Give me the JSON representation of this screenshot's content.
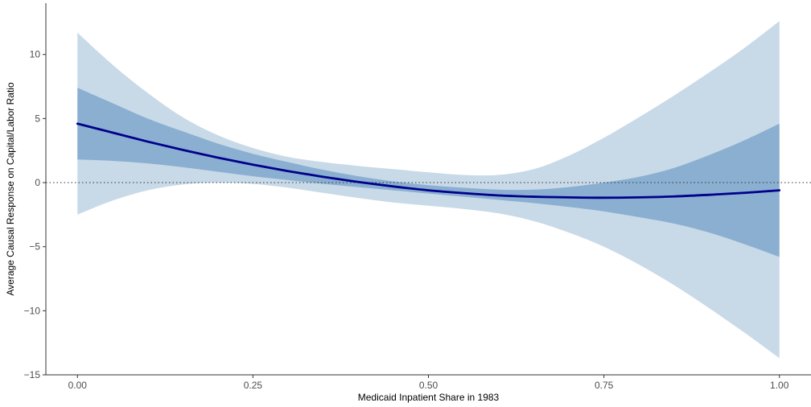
{
  "chart_data": {
    "type": "line",
    "title": "",
    "xlabel": "Medicaid Inpatient Share in 1983",
    "ylabel": "Average Causal Response on Capital/Labor Ratio",
    "xlim": [
      -0.045,
      1.045
    ],
    "ylim": [
      -15,
      14
    ],
    "x_ticks": [
      0.0,
      0.25,
      0.5,
      0.75,
      1.0
    ],
    "x_tick_labels": [
      "0.00",
      "0.25",
      "0.50",
      "0.75",
      "1.00"
    ],
    "y_ticks": [
      -15,
      -10,
      -5,
      0,
      5,
      10
    ],
    "y_tick_labels": [
      "−15",
      "−10",
      "−5",
      "0",
      "5",
      "10"
    ],
    "grid": false,
    "legend": "none",
    "reference_line": {
      "y": 0,
      "style": "dotted",
      "color": "#333333"
    },
    "x": [
      0.0,
      0.05,
      0.1,
      0.15,
      0.2,
      0.25,
      0.3,
      0.35,
      0.4,
      0.45,
      0.5,
      0.55,
      0.6,
      0.65,
      0.7,
      0.75,
      0.8,
      0.85,
      0.9,
      0.95,
      1.0
    ],
    "series": [
      {
        "role": "estimate",
        "color": "#00008B",
        "values": [
          4.6,
          3.9,
          3.2,
          2.55,
          1.95,
          1.4,
          0.9,
          0.45,
          0.05,
          -0.3,
          -0.6,
          -0.82,
          -1.0,
          -1.1,
          -1.15,
          -1.18,
          -1.15,
          -1.08,
          -0.95,
          -0.8,
          -0.6
        ]
      },
      {
        "role": "inner_band",
        "color": "#8aafd1",
        "lower": [
          1.8,
          1.7,
          1.5,
          1.2,
          0.85,
          0.5,
          0.2,
          -0.1,
          -0.35,
          -0.6,
          -0.85,
          -1.1,
          -1.35,
          -1.6,
          -1.9,
          -2.25,
          -2.7,
          -3.2,
          -3.9,
          -4.8,
          -5.8
        ],
        "upper": [
          7.4,
          6.2,
          5.0,
          4.0,
          3.05,
          2.25,
          1.6,
          1.0,
          0.5,
          0.1,
          -0.2,
          -0.4,
          -0.55,
          -0.55,
          -0.35,
          0.0,
          0.45,
          1.15,
          2.15,
          3.3,
          4.6
        ]
      },
      {
        "role": "outer_band",
        "color": "#c8d9e8",
        "lower": [
          -2.5,
          -1.4,
          -0.6,
          -0.15,
          0.0,
          -0.1,
          -0.4,
          -0.8,
          -1.2,
          -1.55,
          -1.8,
          -2.05,
          -2.4,
          -3.0,
          -3.9,
          -5.0,
          -6.4,
          -8.0,
          -9.8,
          -11.7,
          -13.7
        ],
        "upper": [
          11.7,
          9.2,
          7.0,
          5.1,
          3.7,
          2.7,
          2.0,
          1.6,
          1.3,
          1.05,
          0.8,
          0.6,
          0.6,
          1.05,
          2.1,
          3.5,
          5.1,
          6.8,
          8.6,
          10.5,
          12.6
        ]
      }
    ]
  }
}
